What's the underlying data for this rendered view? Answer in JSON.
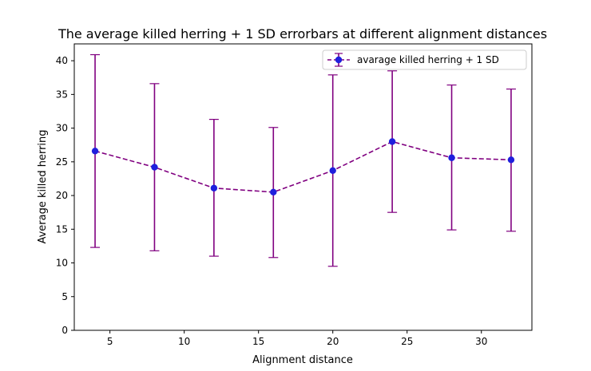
{
  "chart_data": {
    "type": "line",
    "title": "The average killed herring + 1 SD errorbars at different alignment distances",
    "xlabel": "Alignment distance",
    "ylabel": "Average killed herring",
    "xlim": [
      2.6,
      33.4
    ],
    "ylim": [
      0,
      42.5
    ],
    "xticks": [
      5,
      10,
      15,
      20,
      25,
      30
    ],
    "yticks": [
      0,
      5,
      10,
      15,
      20,
      25,
      30,
      35,
      40
    ],
    "grid": false,
    "legend_position": "top-right",
    "series": [
      {
        "name": "avarage killed herring + 1 SD",
        "line_color": "#800080",
        "marker_color": "#1f1fdd",
        "line_style": "dashed",
        "x": [
          4,
          8,
          12,
          16,
          20,
          24,
          28,
          32
        ],
        "y": [
          26.6,
          24.2,
          21.1,
          20.5,
          23.7,
          28.0,
          25.6,
          25.3
        ],
        "error_low": [
          12.3,
          11.8,
          11.0,
          10.8,
          9.5,
          17.5,
          14.9,
          14.7
        ],
        "error_high": [
          40.9,
          36.6,
          31.3,
          30.1,
          37.9,
          38.5,
          36.4,
          35.8
        ]
      }
    ]
  }
}
